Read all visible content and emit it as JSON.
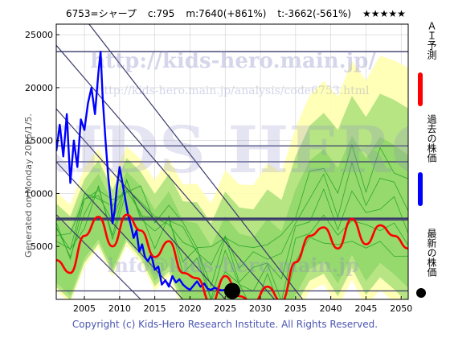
{
  "header": {
    "code_name": "6753=シャープ",
    "current": "c:795",
    "max": "m:7640(+861%)",
    "min": "t:-3662(-561%)",
    "stars": "★★★★★"
  },
  "side_note": "Generated on Monday 2026/1/5.",
  "footer": "Copyright (c) Kids-Hero Research Institute. All Rights Reserved.",
  "watermarks": {
    "url1": "http://kids-hero.main.jp/",
    "url2": "http://kids-hero.main.jp/analysis/code6753.html",
    "big": "KIDS HERO",
    "info": "info@kids-hero.main.jp"
  },
  "legend": {
    "ai": "ＡＩ予測",
    "past": "過去の株価",
    "latest": "最新の株価"
  },
  "colors": {
    "ai": "#ff0000",
    "past": "#0000ff",
    "band_green": "#7ccf5a",
    "band_yellow": "#ffffb0",
    "hline": "#3a3a6a"
  },
  "chart_data": {
    "type": "line",
    "xlim": [
      2001,
      2051
    ],
    "ylim": [
      0,
      26000
    ],
    "x_ticks": [
      2005,
      2010,
      2015,
      2020,
      2025,
      2030,
      2035,
      2040,
      2045,
      2050
    ],
    "y_ticks": [
      5000,
      10000,
      15000,
      20000,
      25000
    ],
    "grid": true,
    "horizontal_levels": [
      23400,
      14500,
      13000,
      7640,
      7500,
      800
    ],
    "latest_point": {
      "x": 2026.0,
      "y": 795
    },
    "series": [
      {
        "role": "past",
        "x": [
          2001.0,
          2001.5,
          2002.0,
          2002.5,
          2003.0,
          2003.5,
          2004.0,
          2004.5,
          2005.0,
          2005.5,
          2006.0,
          2006.5,
          2007.0,
          2007.3,
          2007.6,
          2008.0,
          2008.4,
          2008.8,
          2009.0,
          2009.3,
          2009.6,
          2010.0,
          2010.4,
          2010.8,
          2011.2,
          2011.6,
          2012.0,
          2012.4,
          2012.8,
          2013.2,
          2013.6,
          2014.0,
          2014.5,
          2015.0,
          2015.5,
          2016.0,
          2016.5,
          2017.0,
          2017.5,
          2018.0,
          2018.5,
          2019.0,
          2019.5,
          2020.0,
          2020.5,
          2021.0,
          2021.5,
          2022.0,
          2022.5,
          2023.0,
          2023.5,
          2024.0,
          2024.5,
          2025.0,
          2025.5,
          2026.0
        ],
        "y": [
          14000,
          16500,
          13500,
          17500,
          11000,
          15000,
          12500,
          17000,
          16000,
          18500,
          20000,
          17500,
          21500,
          23400,
          19000,
          15000,
          11500,
          9000,
          7200,
          8400,
          10500,
          12500,
          11000,
          9500,
          8000,
          7000,
          5800,
          6500,
          4500,
          5200,
          4000,
          3600,
          4200,
          2800,
          3100,
          1400,
          1800,
          1200,
          2200,
          1600,
          1900,
          1400,
          1100,
          900,
          1300,
          1700,
          1200,
          1500,
          1000,
          900,
          1100,
          950,
          850,
          900,
          820,
          795
        ]
      },
      {
        "role": "ai",
        "x": [
          2001,
          2003,
          2005,
          2007,
          2009,
          2011,
          2013,
          2015,
          2017,
          2019,
          2021,
          2023,
          2025,
          2027,
          2029,
          2031,
          2033,
          2035,
          2037,
          2039,
          2041,
          2043,
          2045,
          2047,
          2049,
          2051
        ],
        "y": [
          3700,
          2500,
          6000,
          7800,
          5000,
          8000,
          6500,
          4000,
          5500,
          2500,
          2000,
          -400,
          2200,
          300,
          -300,
          1200,
          -200,
          3500,
          6000,
          6800,
          4800,
          7600,
          5200,
          7000,
          6000,
          4800
        ]
      }
    ]
  }
}
